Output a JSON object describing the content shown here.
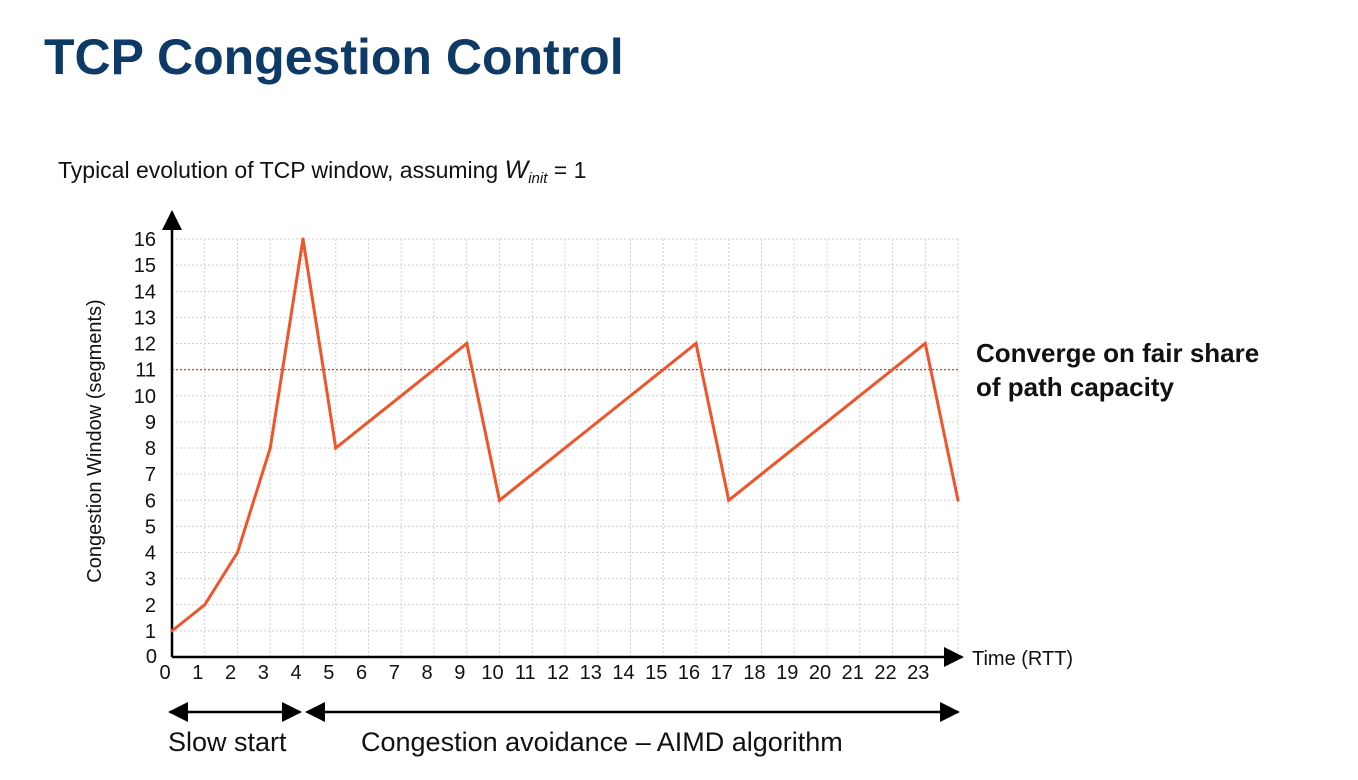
{
  "slide": {
    "title": "TCP Congestion Control",
    "subtitle_prefix": "Typical evolution of TCP window, assuming ",
    "subtitle_var": "W",
    "subtitle_sub": "init",
    "subtitle_suffix": " = 1"
  },
  "callout": {
    "line1": "Converge on fair share",
    "line2": "of path capacity"
  },
  "phases": {
    "slow_start": "Slow start",
    "congestion_avoidance": "Congestion avoidance – AIMD algorithm"
  },
  "colors": {
    "line": "#f0542a",
    "fair_share_line": "#e53a26",
    "grid": "#cfcfcf",
    "title": "#0d3a66"
  },
  "chart_data": {
    "type": "line",
    "title": "",
    "xlabel": "Time (RTT)",
    "ylabel": "Congestion Window (segments)",
    "x_ticks": [
      0,
      1,
      2,
      3,
      4,
      5,
      6,
      7,
      8,
      9,
      10,
      11,
      12,
      13,
      14,
      15,
      16,
      17,
      18,
      19,
      20,
      21,
      22,
      23
    ],
    "y_ticks": [
      0,
      1,
      2,
      3,
      4,
      5,
      6,
      7,
      8,
      9,
      10,
      11,
      12,
      13,
      14,
      15,
      16
    ],
    "xlim": [
      0,
      24
    ],
    "ylim": [
      0,
      16
    ],
    "grid": true,
    "fair_share_level": 11,
    "series": [
      {
        "x": [
          0,
          1,
          2,
          3,
          4,
          5,
          9,
          10,
          16,
          17,
          23,
          24
        ],
        "y": [
          1,
          2,
          4,
          8,
          16,
          8,
          12,
          6,
          12,
          6,
          12,
          6
        ]
      }
    ]
  }
}
